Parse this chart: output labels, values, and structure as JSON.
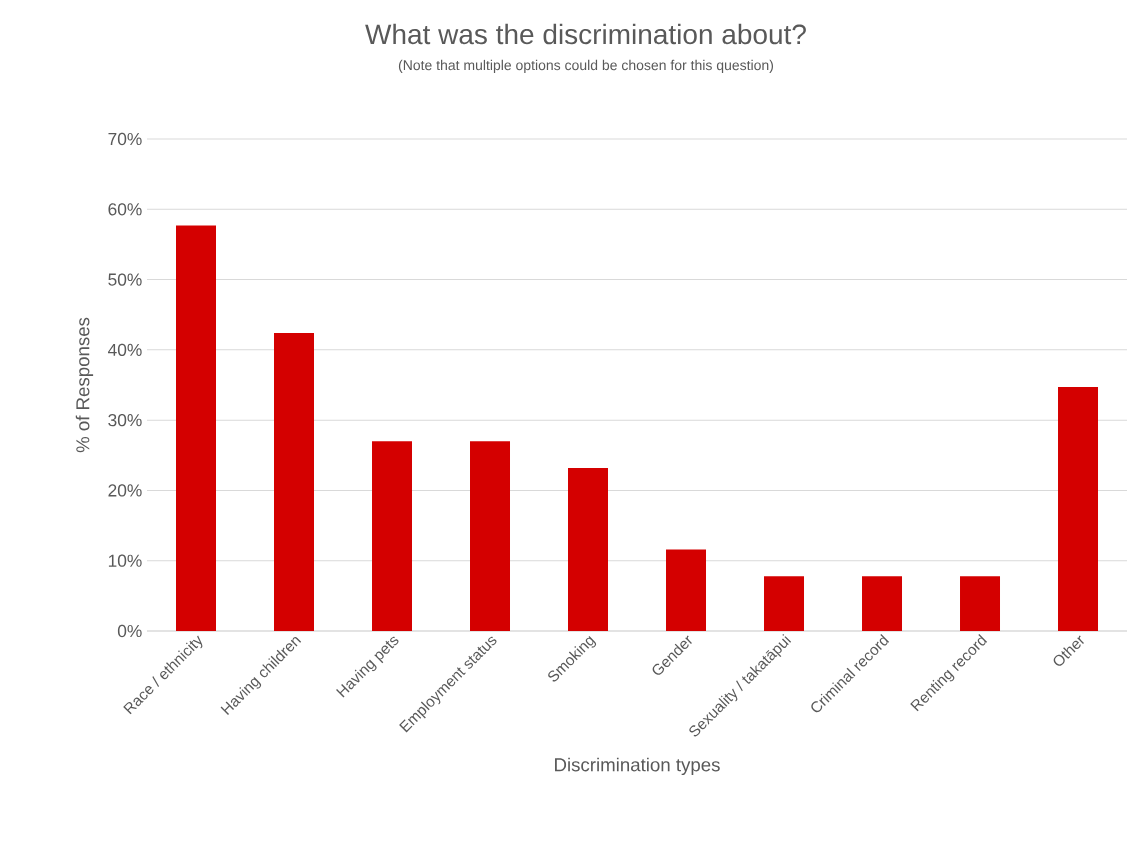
{
  "chart_data": {
    "type": "bar",
    "title": "What was the discrimination about?",
    "subtitle": "(Note that multiple options could be chosen for this question)",
    "xlabel": "Discrimination types",
    "ylabel": "% of Responses",
    "categories": [
      "Race / ethnicity",
      "Having children",
      "Having pets",
      "Employment status",
      "Smoking",
      "Gender",
      "Sexuality / takatāpui",
      "Criminal record",
      "Renting record",
      "Other"
    ],
    "values": [
      57.7,
      42.4,
      27.0,
      27.0,
      23.2,
      11.6,
      7.8,
      7.8,
      7.8,
      34.7
    ],
    "color": "#d40000",
    "ylim": [
      0,
      70
    ],
    "yticks": [
      {
        "value": 0,
        "label": "0%"
      },
      {
        "value": 10,
        "label": "10%"
      },
      {
        "value": 20,
        "label": "20%"
      },
      {
        "value": 30,
        "label": "30%"
      },
      {
        "value": 40,
        "label": "40%"
      },
      {
        "value": 50,
        "label": "50%"
      },
      {
        "value": 60,
        "label": "60%"
      },
      {
        "value": 70,
        "label": "70%"
      }
    ],
    "grid": "y"
  }
}
